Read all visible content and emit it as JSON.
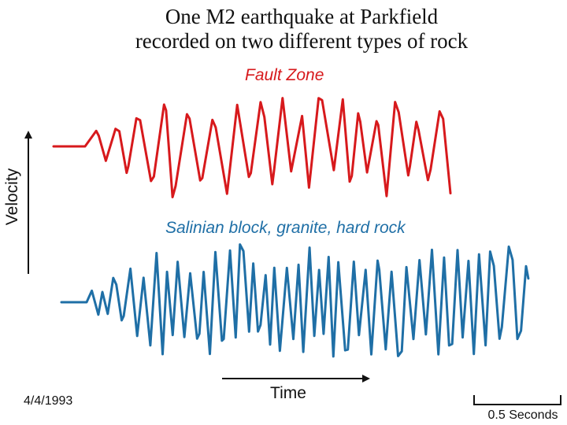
{
  "title": {
    "line1": "One M2 earthquake at Parkfield",
    "line2": "recorded on two different types of rock"
  },
  "traces": {
    "fault_zone": {
      "label": "Fault Zone",
      "color": "#d7191c"
    },
    "salinian": {
      "label": "Salinian block, granite, hard rock",
      "color": "#1f6fa6"
    }
  },
  "axes": {
    "y_label": "Velocity",
    "x_label": "Time"
  },
  "date": "4/4/1993",
  "scale_bar": {
    "label": "0.5 Seconds"
  }
}
